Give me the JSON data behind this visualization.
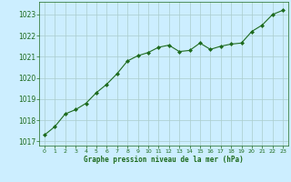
{
  "x": [
    0,
    1,
    2,
    3,
    4,
    5,
    6,
    7,
    8,
    9,
    10,
    11,
    12,
    13,
    14,
    15,
    16,
    17,
    18,
    19,
    20,
    21,
    22,
    23
  ],
  "y": [
    1017.3,
    1017.7,
    1018.3,
    1018.5,
    1018.8,
    1019.3,
    1019.7,
    1020.2,
    1020.8,
    1021.05,
    1021.2,
    1021.45,
    1021.55,
    1021.25,
    1021.3,
    1021.65,
    1021.35,
    1021.5,
    1021.6,
    1021.65,
    1022.2,
    1022.5,
    1023.0,
    1023.2
  ],
  "line_color": "#1e6b1e",
  "marker_color": "#1e6b1e",
  "bg_color": "#cceeff",
  "grid_color": "#aacccc",
  "xlabel": "Graphe pression niveau de la mer (hPa)",
  "xlabel_color": "#1e6b1e",
  "tick_color": "#1e6b1e",
  "ylim": [
    1016.8,
    1023.6
  ],
  "yticks": [
    1017,
    1018,
    1019,
    1020,
    1021,
    1022,
    1023
  ],
  "xticks": [
    0,
    1,
    2,
    3,
    4,
    5,
    6,
    7,
    8,
    9,
    10,
    11,
    12,
    13,
    14,
    15,
    16,
    17,
    18,
    19,
    20,
    21,
    22,
    23
  ]
}
